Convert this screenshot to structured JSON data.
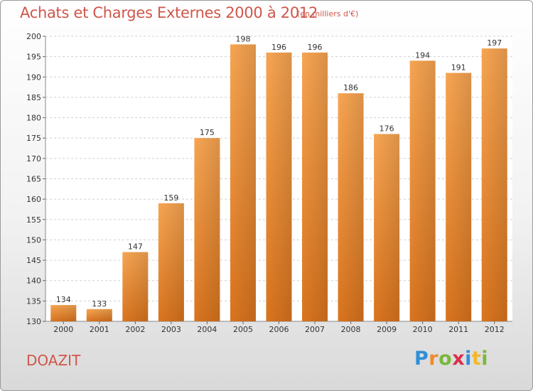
{
  "chart_data": {
    "type": "bar",
    "title": "Achats et Charges Externes 2000 à 2012",
    "subtitle": "(en milliers d'€)",
    "categories": [
      "2000",
      "2001",
      "2002",
      "2003",
      "2004",
      "2005",
      "2006",
      "2007",
      "2008",
      "2009",
      "2010",
      "2011",
      "2012"
    ],
    "values": [
      134,
      133,
      147,
      159,
      175,
      198,
      196,
      196,
      186,
      176,
      194,
      191,
      197
    ],
    "ylim": [
      130,
      200
    ],
    "yticks": [
      130,
      135,
      140,
      145,
      150,
      155,
      160,
      165,
      170,
      175,
      180,
      185,
      190,
      195,
      200
    ],
    "grid": true,
    "bar_color": "#f0913a",
    "xlabel": "",
    "ylabel": ""
  },
  "place_name": "DOAZIT",
  "logo": {
    "letters": [
      "P",
      "r",
      "o",
      "x",
      "i",
      "t",
      "i"
    ],
    "colors": [
      "#2f8fd6",
      "#f08a2c",
      "#7ab83a",
      "#d9304a",
      "#2f8fd6",
      "#f0b82c",
      "#7ab83a"
    ]
  }
}
